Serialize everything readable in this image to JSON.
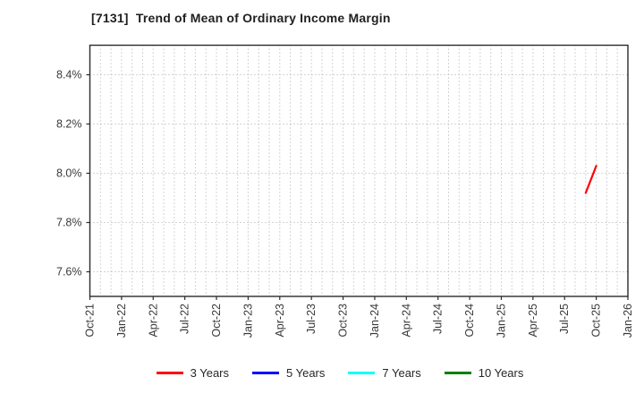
{
  "title": "[7131]  Trend of Mean of Ordinary Income Margin",
  "chart_data": {
    "type": "line",
    "title": "[7131]  Trend of Mean of Ordinary Income Margin",
    "xlabel": "",
    "ylabel": "",
    "ylim": [
      7.5,
      8.52
    ],
    "grid": "dotted; vertical line every month, horizontal line at each y tick",
    "legend_position": "bottom-center",
    "x_start_month": "Oct-21",
    "x_end_month": "Jan-26",
    "x_total_months": 51,
    "x_tick_step_months": 3,
    "x_tick_labels": [
      "Oct-21",
      "Jan-22",
      "Apr-22",
      "Jul-22",
      "Oct-22",
      "Jan-23",
      "Apr-23",
      "Jul-23",
      "Oct-23",
      "Jan-24",
      "Apr-24",
      "Jul-24",
      "Oct-24",
      "Jan-25",
      "Apr-25",
      "Jul-25",
      "Oct-25",
      "Jan-26"
    ],
    "y_ticks": [
      {
        "value": 8.4,
        "label": "8.4%"
      },
      {
        "value": 8.2,
        "label": "8.2%"
      },
      {
        "value": 8.0,
        "label": "8.0%"
      },
      {
        "value": 7.8,
        "label": "7.8%"
      },
      {
        "value": 7.6,
        "label": "7.6%"
      }
    ],
    "series": [
      {
        "name": "3 Years",
        "color": "#ff0000",
        "points": [
          {
            "date": "Sep-25",
            "month_index": 47,
            "value": 7.92
          },
          {
            "date": "Oct-25",
            "month_index": 48,
            "value": 8.03
          }
        ]
      },
      {
        "name": "5 Years",
        "color": "#0000ff",
        "points": []
      },
      {
        "name": "7 Years",
        "color": "#00ffff",
        "points": []
      },
      {
        "name": "10 Years",
        "color": "#008000",
        "points": []
      }
    ],
    "colors": {
      "grid": "#ababab",
      "spine": "#2b2b2b",
      "tick_label": "#3a3a3a",
      "title": "#1f1f1f"
    }
  }
}
